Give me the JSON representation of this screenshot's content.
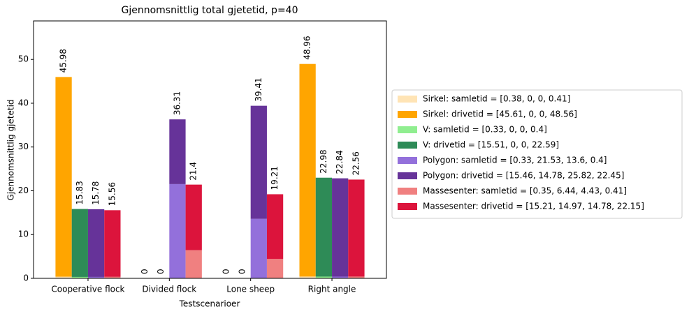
{
  "chart_data": {
    "type": "stacked-grouped-bar",
    "title": "Gjennomsnittlig total gjetetid, p=40",
    "xlabel": "Testscenarioer",
    "ylabel": "Gjennomsnittlig gjetetid",
    "categories": [
      "Cooperative flock",
      "Divided flock",
      "Lone sheep",
      "Right angle"
    ],
    "ylim": [
      0,
      58.8
    ],
    "yticks": [
      0,
      10,
      20,
      30,
      40,
      50
    ],
    "series": [
      {
        "name": "Sirkel: samletid = [0.38, 0, 0, 0.41]",
        "color": "#ffe4b5",
        "stack": 0,
        "values": [
          0.38,
          0,
          0,
          0.41
        ]
      },
      {
        "name": "Sirkel: drivetid = [45.61, 0, 0, 48.56]",
        "color": "#ffa500",
        "stack": 0,
        "values": [
          45.61,
          0,
          0,
          48.56
        ]
      },
      {
        "name": "V: samletid = [0.33, 0, 0, 0.4]",
        "color": "#90ee90",
        "stack": 1,
        "values": [
          0.33,
          0,
          0,
          0.4
        ]
      },
      {
        "name": "V: drivetid = [15.51, 0, 0, 22.59]",
        "color": "#2e8b57",
        "stack": 1,
        "values": [
          15.51,
          0,
          0,
          22.59
        ]
      },
      {
        "name": "Polygon: samletid = [0.33, 21.53, 13.6, 0.4]",
        "color": "#9370db",
        "stack": 2,
        "values": [
          0.33,
          21.53,
          13.6,
          0.4
        ]
      },
      {
        "name": "Polygon: drivetid = [15.46, 14.78, 25.82, 22.45]",
        "color": "#663399",
        "stack": 2,
        "values": [
          15.46,
          14.78,
          25.82,
          22.45
        ]
      },
      {
        "name": "Massesenter: samletid = [0.35, 6.44, 4.43, 0.41]",
        "color": "#f08080",
        "stack": 3,
        "values": [
          0.35,
          6.44,
          4.43,
          0.41
        ]
      },
      {
        "name": "Massesenter: drivetid = [15.21, 14.97, 14.78, 22.15]",
        "color": "#dc143c",
        "stack": 3,
        "values": [
          15.21,
          14.97,
          14.78,
          22.15
        ]
      }
    ],
    "stack_totals": [
      [
        45.98,
        0,
        0,
        48.96
      ],
      [
        15.83,
        0,
        0,
        22.98
      ],
      [
        15.78,
        36.31,
        39.41,
        22.84
      ],
      [
        15.56,
        21.4,
        19.21,
        22.56
      ]
    ],
    "legend": "right"
  }
}
